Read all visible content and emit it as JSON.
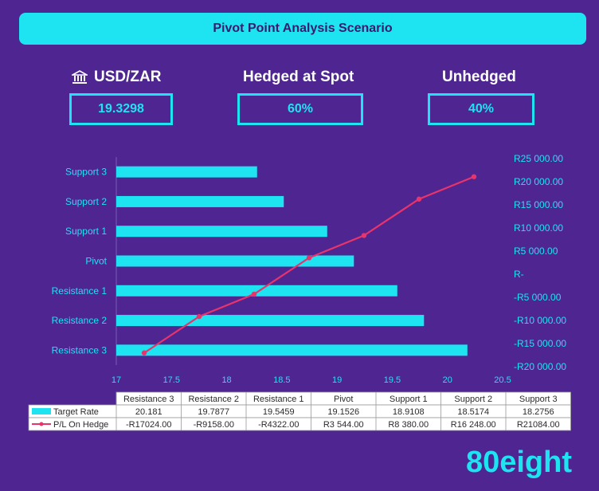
{
  "banner": {
    "title": "Pivot Point Analysis Scenario"
  },
  "kpis": [
    {
      "label": "USD/ZAR",
      "value": "19.3298",
      "icon": "bank-icon"
    },
    {
      "label": "Hedged at Spot",
      "value": "60%"
    },
    {
      "label": "Unhedged",
      "value": "40%"
    }
  ],
  "colors": {
    "bar": "#1ee3f0",
    "line": "#e8336b",
    "background": "#4f2591"
  },
  "chart_data": {
    "type": "bar",
    "orientation": "horizontal",
    "categories": [
      "Resistance 3",
      "Resistance 2",
      "Resistance 1",
      "Pivot",
      "Support 1",
      "Support 2",
      "Support 3"
    ],
    "series": [
      {
        "name": "Target Rate",
        "type": "bar",
        "axis": "primary",
        "values": [
          20.181,
          19.7877,
          19.5459,
          19.1526,
          18.9108,
          18.5174,
          18.2756
        ],
        "labels": [
          "20.181",
          "19.7877",
          "19.5459",
          "19.1526",
          "18.9108",
          "18.5174",
          "18.2756"
        ]
      },
      {
        "name": "P/L On Hedge",
        "type": "line",
        "axis": "secondary",
        "values": [
          -17024,
          -9158,
          -4322,
          3544,
          8380,
          16248,
          21084
        ],
        "labels": [
          "-R17024.00",
          "-R9158.00",
          "-R4322.00",
          "R3 544.00",
          "R8 380.00",
          "R16 248.00",
          "R21084.00"
        ]
      }
    ],
    "x_axis": {
      "min": 17,
      "max": 20.5,
      "ticks": [
        "17",
        "17.5",
        "18",
        "18.5",
        "19",
        "19.5",
        "20",
        "20.5"
      ]
    },
    "secondary_axis": {
      "min": -20000,
      "max": 25000,
      "ticks": [
        "R25 000.00",
        "R20 000.00",
        "R15 000.00",
        "R10 000.00",
        "R5 000.00",
        "R-",
        "-R5 000.00",
        "-R10 000.00",
        "-R15 000.00",
        "-R20 000.00"
      ]
    },
    "data_table": true
  },
  "logo": {
    "text": "80eight"
  }
}
